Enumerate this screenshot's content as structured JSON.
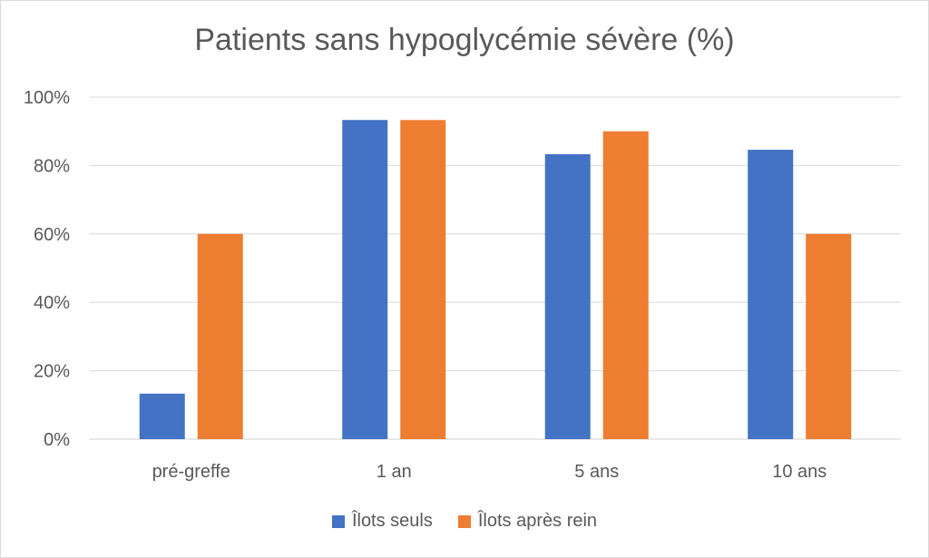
{
  "chart_data": {
    "type": "bar",
    "title": "Patients sans hypoglycémie sévère (%)",
    "categories": [
      "pré-greffe",
      "1 an",
      "5 ans",
      "10 ans"
    ],
    "series": [
      {
        "name": "Îlots seuls",
        "color": "#4472C4",
        "values": [
          13.3,
          93.3,
          83.3,
          84.6
        ]
      },
      {
        "name": "Îlots après rein",
        "color": "#ED7D31",
        "values": [
          60,
          93.3,
          90,
          60
        ]
      }
    ],
    "ylim": [
      0,
      100
    ],
    "yticks": [
      0,
      20,
      40,
      60,
      80,
      100
    ],
    "ytick_labels": [
      "0%",
      "20%",
      "40%",
      "60%",
      "80%",
      "100%"
    ],
    "xlabel": "",
    "ylabel": "",
    "grid": true,
    "legend_position": "bottom"
  }
}
